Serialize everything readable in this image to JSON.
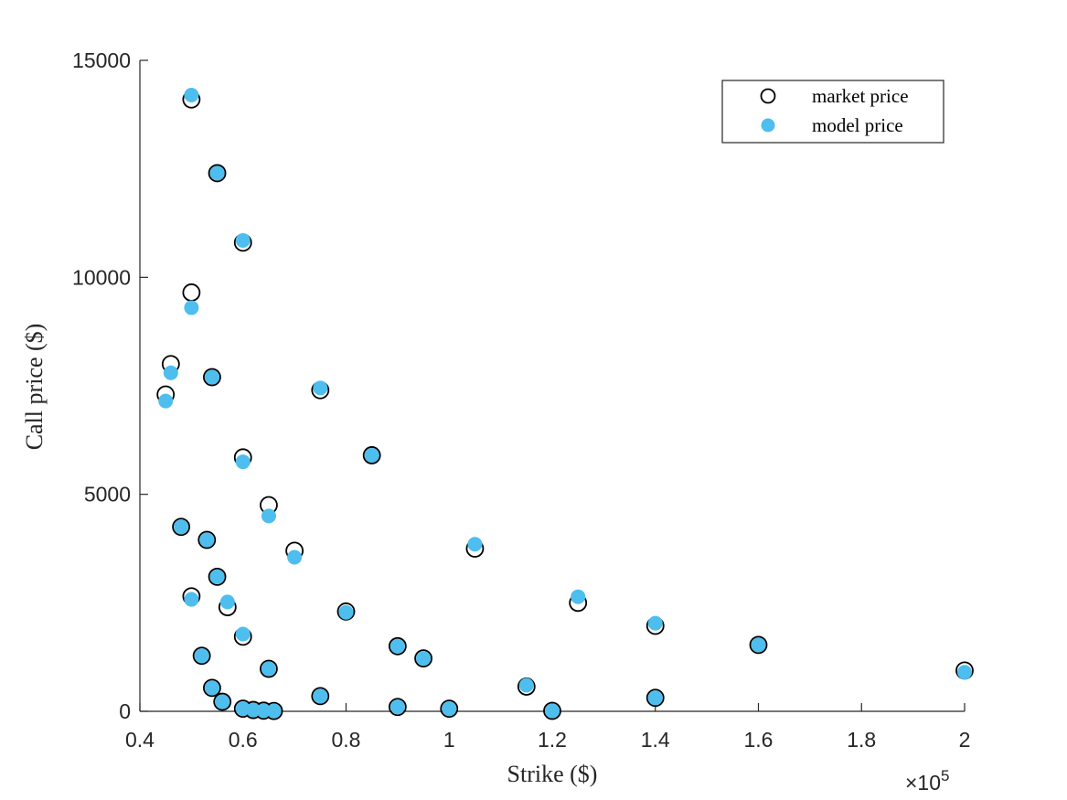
{
  "chart_data": {
    "type": "scatter",
    "xlabel": "Strike ($)",
    "ylabel": "Call price ($)",
    "xlim": [
      0.4,
      2.0
    ],
    "ylim": [
      0,
      15000
    ],
    "x_multiplier_label": {
      "base": "×10",
      "exponent": "5"
    },
    "x_ticks": [
      "0.4",
      "0.6",
      "0.8",
      "1",
      "1.2",
      "1.4",
      "1.6",
      "1.8",
      "2"
    ],
    "x_tick_values": [
      0.4,
      0.6,
      0.8,
      1.0,
      1.2,
      1.4,
      1.6,
      1.8,
      2.0
    ],
    "y_ticks": [
      "0",
      "5000",
      "10000",
      "15000"
    ],
    "y_tick_values": [
      0,
      5000,
      10000,
      15000
    ],
    "grid": false,
    "legend_position": "top-right",
    "colors": {
      "market": "#000000",
      "model": "#4DBEEE"
    },
    "series": [
      {
        "name": "market price",
        "marker": "open-circle",
        "points": [
          [
            0.5,
            14100
          ],
          [
            0.55,
            12400
          ],
          [
            0.6,
            10800
          ],
          [
            0.5,
            9650
          ],
          [
            0.46,
            8000
          ],
          [
            0.45,
            7300
          ],
          [
            0.54,
            7700
          ],
          [
            0.75,
            7400
          ],
          [
            0.6,
            5850
          ],
          [
            0.85,
            5900
          ],
          [
            0.65,
            4750
          ],
          [
            0.48,
            4250
          ],
          [
            0.53,
            3950
          ],
          [
            0.7,
            3700
          ],
          [
            1.05,
            3750
          ],
          [
            0.55,
            3100
          ],
          [
            0.5,
            2650
          ],
          [
            0.57,
            2400
          ],
          [
            1.25,
            2500
          ],
          [
            0.8,
            2300
          ],
          [
            1.4,
            1970
          ],
          [
            0.6,
            1720
          ],
          [
            1.6,
            1530
          ],
          [
            0.9,
            1500
          ],
          [
            0.95,
            1220
          ],
          [
            0.52,
            1280
          ],
          [
            0.65,
            980
          ],
          [
            2.0,
            940
          ],
          [
            1.15,
            570
          ],
          [
            0.54,
            540
          ],
          [
            0.75,
            350
          ],
          [
            1.4,
            310
          ],
          [
            0.56,
            220
          ],
          [
            0.9,
            100
          ],
          [
            1.0,
            60
          ],
          [
            0.6,
            60
          ],
          [
            0.62,
            30
          ],
          [
            0.64,
            15
          ],
          [
            0.66,
            8
          ],
          [
            1.2,
            10
          ]
        ]
      },
      {
        "name": "model price",
        "marker": "filled-circle",
        "points": [
          [
            0.5,
            14200
          ],
          [
            0.55,
            12400
          ],
          [
            0.6,
            10850
          ],
          [
            0.5,
            9300
          ],
          [
            0.46,
            7800
          ],
          [
            0.45,
            7150
          ],
          [
            0.54,
            7700
          ],
          [
            0.75,
            7450
          ],
          [
            0.6,
            5750
          ],
          [
            0.85,
            5900
          ],
          [
            0.65,
            4500
          ],
          [
            0.48,
            4250
          ],
          [
            0.53,
            3950
          ],
          [
            0.7,
            3550
          ],
          [
            1.05,
            3850
          ],
          [
            0.55,
            3100
          ],
          [
            0.5,
            2580
          ],
          [
            0.57,
            2520
          ],
          [
            1.25,
            2640
          ],
          [
            0.8,
            2280
          ],
          [
            1.4,
            2030
          ],
          [
            0.6,
            1780
          ],
          [
            1.6,
            1530
          ],
          [
            0.9,
            1500
          ],
          [
            0.95,
            1220
          ],
          [
            0.52,
            1280
          ],
          [
            0.65,
            980
          ],
          [
            2.0,
            900
          ],
          [
            1.15,
            600
          ],
          [
            0.54,
            540
          ],
          [
            0.75,
            350
          ],
          [
            1.4,
            310
          ],
          [
            0.56,
            220
          ],
          [
            0.9,
            100
          ],
          [
            1.0,
            60
          ],
          [
            0.6,
            60
          ],
          [
            0.62,
            30
          ],
          [
            0.64,
            15
          ],
          [
            0.66,
            8
          ],
          [
            1.2,
            10
          ]
        ]
      }
    ]
  }
}
